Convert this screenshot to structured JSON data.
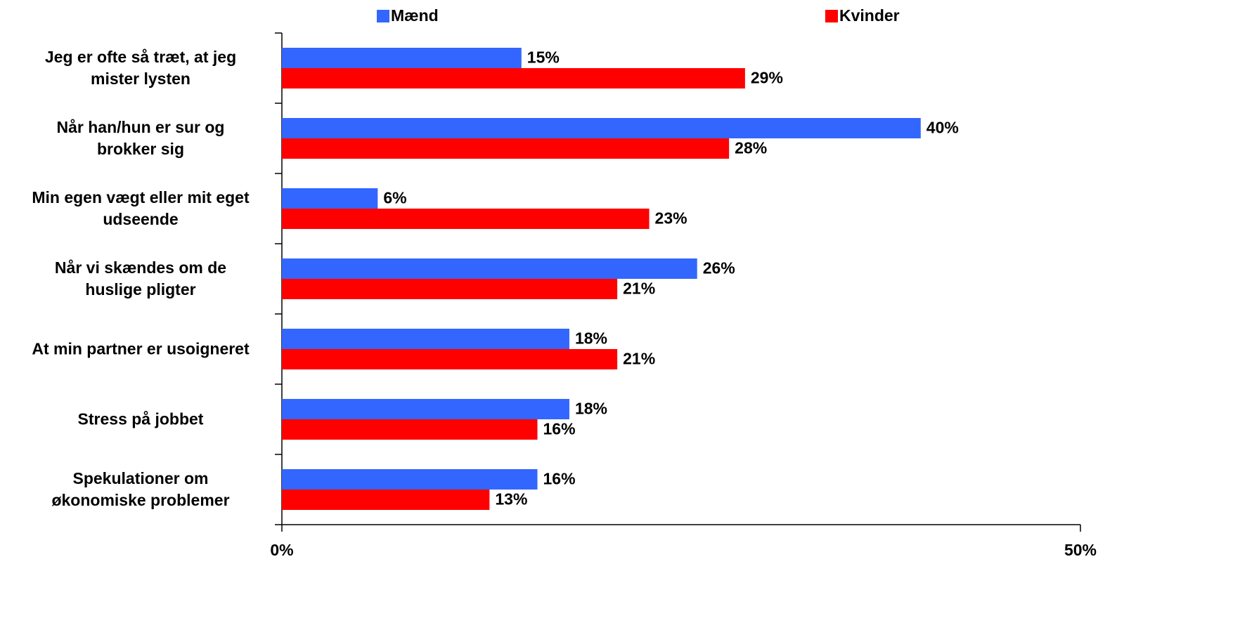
{
  "chart_data": {
    "type": "hbar",
    "categories": [
      "Jeg er ofte så træt, at jeg\nmister lysten",
      "Når han/hun er sur og\nbrokker sig",
      "Min egen vægt eller mit eget\nudseende",
      "Når vi skændes om de\nhuslige pligter",
      "At min partner er usoigneret",
      "Stress på jobbet",
      "Spekulationer om\nøkonomiske problemer"
    ],
    "series": [
      {
        "name": "Mænd",
        "color": "#3366ff",
        "values": [
          15,
          40,
          6,
          26,
          18,
          18,
          16
        ],
        "value_labels": [
          "15%",
          "40%",
          "6%",
          "26%",
          "18%",
          "18%",
          "16%"
        ]
      },
      {
        "name": "Kvinder",
        "color": "#ff0000",
        "values": [
          29,
          28,
          23,
          21,
          21,
          16,
          13
        ],
        "value_labels": [
          "29%",
          "28%",
          "23%",
          "21%",
          "21%",
          "16%",
          "13%"
        ]
      }
    ],
    "xlim": [
      0,
      50
    ],
    "xticks": [
      {
        "value": 0,
        "label": "0%"
      },
      {
        "value": 50,
        "label": "50%"
      }
    ],
    "grid": false
  }
}
